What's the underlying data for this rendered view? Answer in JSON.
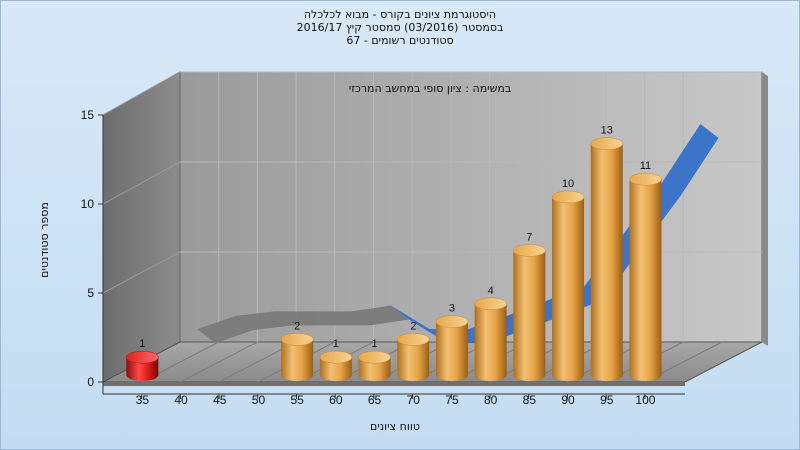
{
  "chart_data": {
    "type": "bar",
    "title_lines": [
      "היסטוגרמת ציונים בקורס - מבוא לכלכלה",
      "בסמסטר  (03/2016)  סמסטר קיץ 2016/17",
      "סטודנטים רשומים - 67"
    ],
    "annotation": "במשימה : ציון סופי במחשב המרכזי",
    "xlabel": "טווח ציונים",
    "ylabel": "מספר סטודנטים",
    "categories": [
      "35",
      "40",
      "45",
      "50",
      "55",
      "60",
      "65",
      "70",
      "75",
      "80",
      "85",
      "90",
      "95",
      "100"
    ],
    "values": [
      1,
      0,
      0,
      0,
      2,
      1,
      1,
      2,
      3,
      4,
      7,
      10,
      13,
      11
    ],
    "ylim": [
      0,
      15
    ],
    "yticks": [
      0,
      5,
      10,
      15
    ],
    "grid": true,
    "bar_colors": {
      "highlight": "#d61a1a",
      "default": "#e0a040"
    },
    "highlight_categories": [
      "35"
    ],
    "trend_line": {
      "color_front": "#3470c8",
      "color_back": "#7a7a7a",
      "y": [
        0.6,
        1.5,
        1.8,
        1.8,
        1.8,
        2.2,
        0.6,
        0.6,
        1.5,
        2.5,
        3.5,
        7.0,
        10.5,
        14.5
      ]
    }
  }
}
